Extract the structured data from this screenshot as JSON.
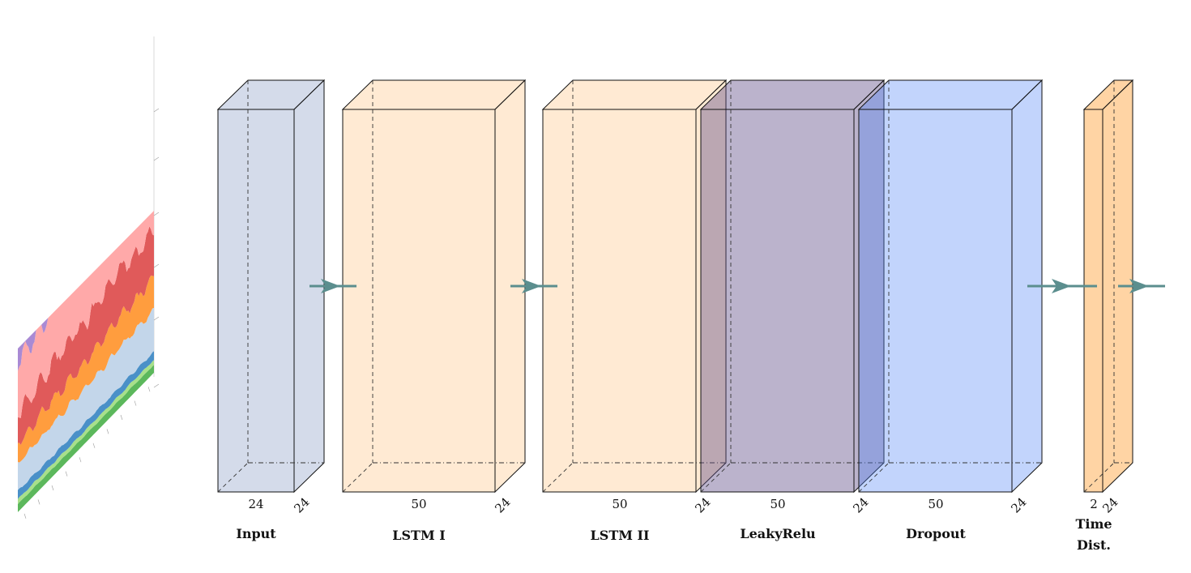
{
  "diagram": {
    "layers": [
      {
        "name": "Input",
        "width_label": "24",
        "depth_label": "24",
        "color": "#aab8d6"
      },
      {
        "name": "LSTM I",
        "width_label": "50",
        "depth_label": "24",
        "color": "#ffd6a8"
      },
      {
        "name": "LSTM II",
        "width_label": "50",
        "depth_label": "24",
        "color": "#ffd6a8"
      },
      {
        "name": "LeakyRelu",
        "width_label": "50",
        "depth_label": "24",
        "color": "#5e4a86"
      },
      {
        "name": "Dropout",
        "width_label": "50",
        "depth_label": "24",
        "color": "#4f84f5"
      },
      {
        "name": "Time Dist.",
        "name_lines": [
          "Time",
          "Dist."
        ],
        "width_label": "2",
        "depth_label": "24",
        "color": "#ffb867"
      }
    ],
    "arrow_color": "#5b8e8e",
    "input_thumbnail": {
      "icon": "stacked-area-chart-thumbnail",
      "colors": [
        "#5cb85c",
        "#a8e08a",
        "#4a90c8",
        "#c3d6ea",
        "#ff9d3e",
        "#e05a5a",
        "#ffa9a9",
        "#a98ad4",
        "#c99a98"
      ]
    }
  }
}
